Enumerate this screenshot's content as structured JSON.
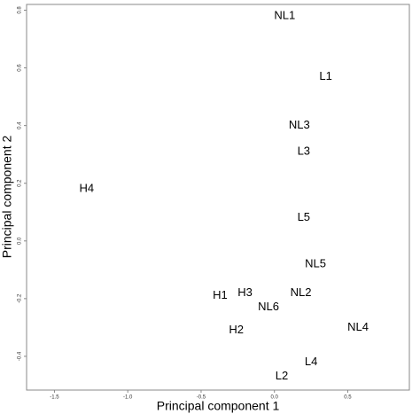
{
  "chart_data": {
    "type": "scatter",
    "xlabel": "Principal component 1",
    "ylabel": "Principal component 2",
    "point_labels": [
      "NL1",
      "L1",
      "NL3",
      "L3",
      "H4",
      "L5",
      "NL5",
      "H1",
      "H3",
      "NL2",
      "NL6",
      "H2",
      "NL4",
      "L4",
      "L2"
    ],
    "x": [
      0.07,
      0.35,
      0.17,
      0.2,
      -1.28,
      0.2,
      0.28,
      -0.37,
      -0.2,
      0.18,
      -0.04,
      -0.26,
      0.57,
      0.25,
      0.05
    ],
    "values": [
      0.78,
      0.57,
      0.4,
      0.31,
      0.18,
      0.08,
      -0.08,
      -0.19,
      -0.18,
      -0.18,
      -0.23,
      -0.31,
      -0.3,
      -0.42,
      -0.47
    ],
    "xlim": [
      -1.69,
      0.92
    ],
    "ylim": [
      -0.517,
      0.82
    ],
    "xticks": [
      -1.5,
      {
        "value": -1.0,
        "label": "-1.0"
      },
      -0.5,
      {
        "value": 0.0,
        "label": "0.0"
      },
      0.5
    ],
    "yticks": [
      -0.4,
      -0.2,
      {
        "value": 0.0,
        "label": "0.0"
      },
      0.2,
      0.4,
      0.6,
      0.8
    ]
  }
}
